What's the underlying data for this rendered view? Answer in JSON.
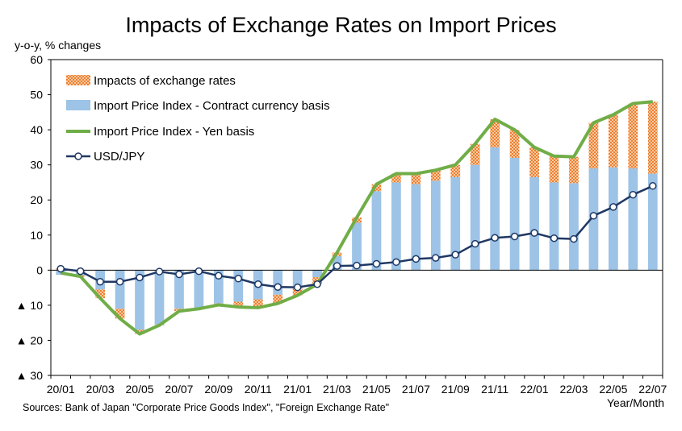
{
  "chart_data": {
    "type": "bar",
    "title": "Impacts of Exchange Rates on Import Prices",
    "ylabel": "y-o-y, % changes",
    "xlabel": "Year/Month",
    "source": "Sources: Bank of Japan \"Corporate Price Goods Index\", \"Foreign Exchange Rate\"",
    "ylim": [
      -30,
      60
    ],
    "yticks": [
      {
        "value": 60,
        "label": "60"
      },
      {
        "value": 50,
        "label": "50"
      },
      {
        "value": 40,
        "label": "40"
      },
      {
        "value": 30,
        "label": "30"
      },
      {
        "value": 20,
        "label": "20"
      },
      {
        "value": 10,
        "label": "10"
      },
      {
        "value": 0,
        "label": "0"
      },
      {
        "value": -10,
        "label": "▲ 10"
      },
      {
        "value": -20,
        "label": "▲ 20"
      },
      {
        "value": -30,
        "label": "▲ 30"
      }
    ],
    "categories": [
      "20/01",
      "20/02",
      "20/03",
      "20/04",
      "20/05",
      "20/06",
      "20/07",
      "20/08",
      "20/09",
      "20/10",
      "20/11",
      "20/12",
      "21/01",
      "21/02",
      "21/03",
      "21/04",
      "21/05",
      "21/06",
      "21/07",
      "21/08",
      "21/09",
      "21/10",
      "21/11",
      "21/12",
      "22/01",
      "22/02",
      "22/03",
      "22/04",
      "22/05",
      "22/06",
      "22/07"
    ],
    "xtick_labels": [
      "20/01",
      "",
      "20/03",
      "",
      "20/05",
      "",
      "20/07",
      "",
      "20/09",
      "",
      "20/11",
      "",
      "21/01",
      "",
      "21/03",
      "",
      "21/05",
      "",
      "21/07",
      "",
      "21/09",
      "",
      "21/11",
      "",
      "22/01",
      "",
      "22/03",
      "",
      "22/05",
      "",
      "22/07"
    ],
    "legend_placement": "top-left",
    "grid": false,
    "series": [
      {
        "name": "Impacts of exchange rates",
        "kind": "stacked-bar",
        "color": "#ed7d31",
        "values": [
          0.5,
          -0.4,
          -2.5,
          -2.8,
          -1.2,
          -0.2,
          -0.7,
          -0.2,
          -0.4,
          -1.5,
          -2.4,
          -2.5,
          -2.2,
          -2.0,
          1.0,
          1.5,
          2.0,
          2.5,
          3.0,
          3.0,
          3.5,
          6.0,
          8.0,
          8.0,
          8.5,
          7.5,
          7.5,
          13.0,
          15.0,
          18.5,
          20.5
        ]
      },
      {
        "name": "Import Price Index - Contract currency basis",
        "kind": "bar",
        "color": "#9dc3e6",
        "values": [
          -1.3,
          -1.5,
          -5.5,
          -11.0,
          -17.0,
          -15.5,
          -11.0,
          -10.8,
          -9.5,
          -9.0,
          -8.3,
          -7.0,
          -5.0,
          -2.0,
          4.0,
          13.5,
          22.5,
          25.0,
          24.5,
          25.5,
          26.5,
          30.0,
          35.0,
          32.0,
          26.5,
          25.0,
          24.8,
          29.0,
          29.3,
          29.0,
          27.5
        ]
      },
      {
        "name": "Import Price Index - Yen basis",
        "kind": "line",
        "color": "#70ad47",
        "values": [
          -0.8,
          -1.8,
          -8.0,
          -13.8,
          -18.2,
          -15.7,
          -11.7,
          -11.0,
          -9.9,
          -10.5,
          -10.7,
          -9.5,
          -7.2,
          -4.0,
          5.0,
          15.0,
          24.5,
          27.5,
          27.5,
          28.5,
          30.0,
          36.0,
          43.0,
          40.0,
          35.0,
          32.5,
          32.3,
          42.0,
          44.3,
          47.5,
          48.0
        ]
      },
      {
        "name": "USD/JPY",
        "kind": "line-markers",
        "color": "#1f3864",
        "values": [
          0.4,
          -0.3,
          -3.3,
          -3.3,
          -2.1,
          -0.4,
          -1.2,
          -0.3,
          -1.6,
          -2.4,
          -4.0,
          -4.8,
          -4.9,
          -4.0,
          1.2,
          1.3,
          1.8,
          2.3,
          3.2,
          3.5,
          4.4,
          7.5,
          9.2,
          9.6,
          10.6,
          9.1,
          8.9,
          15.5,
          18.0,
          21.5,
          24.0
        ]
      }
    ]
  }
}
